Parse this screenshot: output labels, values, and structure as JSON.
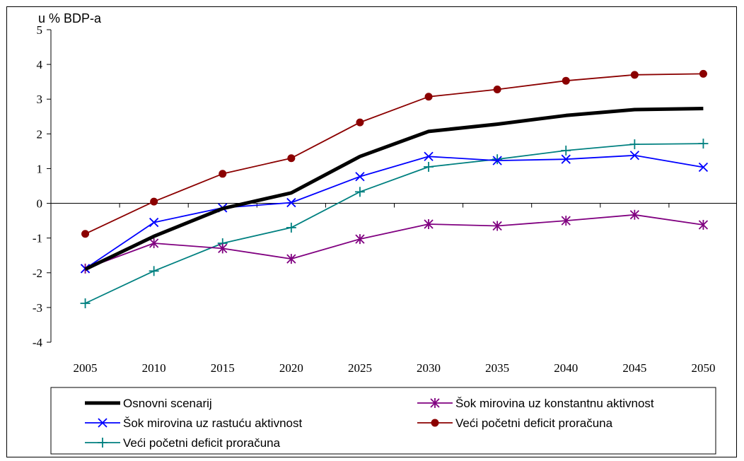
{
  "chart_data": {
    "type": "line",
    "title": "",
    "unit_label": "u % BDP-a",
    "xlabel": "",
    "ylabel": "",
    "categories": [
      "2005",
      "2010",
      "2015",
      "2020",
      "2025",
      "2030",
      "2035",
      "2040",
      "2045",
      "2050"
    ],
    "ylim": [
      -4,
      5
    ],
    "yticks": [
      5,
      4,
      3,
      2,
      1,
      0,
      -1,
      -2,
      -3,
      -4
    ],
    "grid": false,
    "legend_position": "bottom",
    "series": [
      {
        "name": "Osnovni scenarij",
        "color": "#000000",
        "marker": "none",
        "values": [
          -1.9,
          -0.95,
          -0.15,
          0.3,
          1.35,
          2.07,
          2.28,
          2.53,
          2.7,
          2.73
        ]
      },
      {
        "name": "Šok mirovina uz konstantnu aktivnost",
        "color": "#800080",
        "marker": "asterisk",
        "values": [
          -1.88,
          -1.15,
          -1.3,
          -1.6,
          -1.03,
          -0.6,
          -0.65,
          -0.5,
          -0.33,
          -0.62
        ]
      },
      {
        "name": "Šok mirovina uz rastuću aktivnost",
        "color": "#0000FF",
        "marker": "x",
        "values": [
          -1.88,
          -0.55,
          -0.13,
          0.02,
          0.77,
          1.35,
          1.23,
          1.27,
          1.38,
          1.04
        ]
      },
      {
        "name": "Veći početni deficit proračuna",
        "color": "#8B0000",
        "marker": "circle",
        "values": [
          -0.88,
          0.05,
          0.85,
          1.3,
          2.33,
          3.07,
          3.28,
          3.53,
          3.7,
          3.73
        ]
      },
      {
        "name": "Veći početni deficit proračuna",
        "color": "#008080",
        "marker": "plus",
        "values": [
          -2.88,
          -1.95,
          -1.15,
          -0.7,
          0.33,
          1.05,
          1.27,
          1.52,
          1.7,
          1.72
        ]
      }
    ]
  }
}
